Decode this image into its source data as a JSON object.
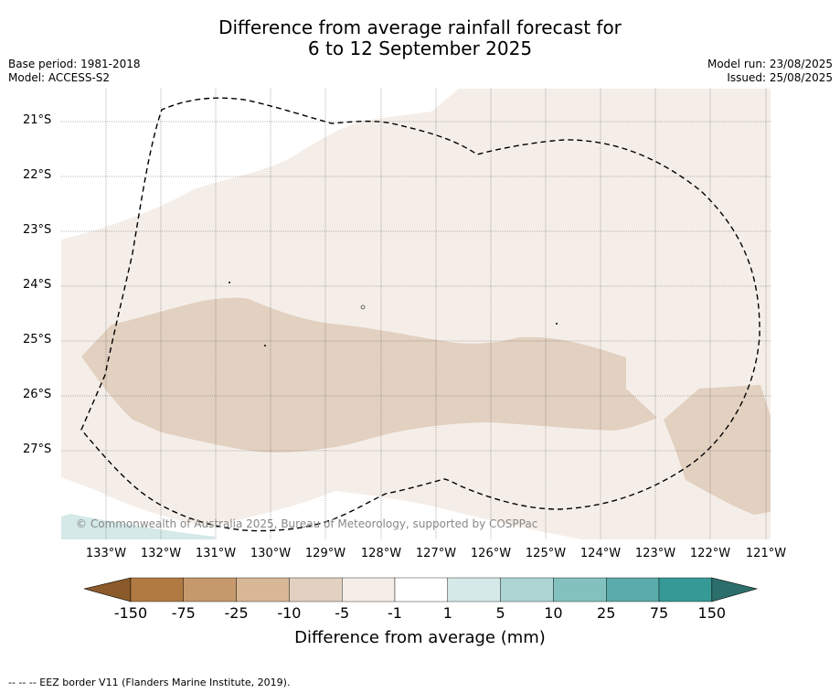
{
  "title": {
    "line1": "Difference from average rainfall forecast for",
    "line2": "6 to 12 September 2025"
  },
  "meta_left": {
    "base_period": "Base period: 1981-2018",
    "model": "Model: ACCESS-S2"
  },
  "meta_right": {
    "model_run": "Model run: 23/08/2025",
    "issued": "Issued: 25/08/2025"
  },
  "map": {
    "lat_labels": [
      "21°S",
      "22°S",
      "23°S",
      "24°S",
      "25°S",
      "26°S",
      "27°S"
    ],
    "lon_labels": [
      "133°W",
      "132°W",
      "131°W",
      "130°W",
      "129°W",
      "128°W",
      "127°W",
      "126°W",
      "125°W",
      "124°W",
      "123°W",
      "122°W",
      "121°W"
    ],
    "copyright": "© Commonwealth of Australia 2025, Bureau of Meteorology, supported by COSPPac",
    "colors": {
      "light_tan": "#f5eee8",
      "tan": "#e2d0c0",
      "light_teal": "#d4e9e8",
      "eez_line": "#000000"
    }
  },
  "colorbar": {
    "ticks": [
      "-150",
      "-75",
      "-25",
      "-10",
      "-5",
      "-1",
      "1",
      "5",
      "10",
      "25",
      "75",
      "150"
    ],
    "colors": [
      "#8b5a2b",
      "#b07a42",
      "#c5996c",
      "#d7b796",
      "#e2d0c0",
      "#f5eee8",
      "#ffffff",
      "#d4e9e8",
      "#acd5d4",
      "#83c1bf",
      "#5aacaa",
      "#369996",
      "#2c6e6b"
    ],
    "title": "Difference from average (mm)"
  },
  "footer": "--  --  -- EEZ border V11 (Flanders Marine Institute, 2019)."
}
